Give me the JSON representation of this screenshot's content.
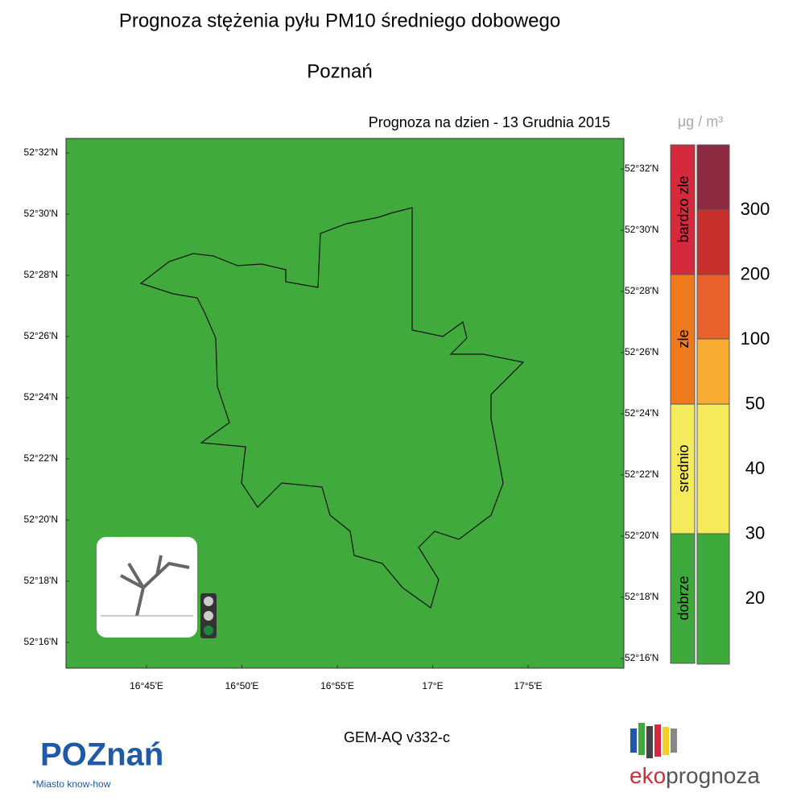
{
  "header": {
    "title": "Prognoza stężenia pyłu PM10 średniego dobowego",
    "city": "Poznań"
  },
  "map": {
    "date_label": "Prognoza na dzien -  13 Grudnia 2015",
    "lat_ticks_left": [
      "52°32'N",
      "52°30'N",
      "52°28'N",
      "52°26'N",
      "52°24'N",
      "52°22'N",
      "52°20'N",
      "52°18'N",
      "52°16'N"
    ],
    "lat_ticks_right": [
      "52°32'N",
      "52°30'N",
      "52°28'N",
      "52°26'N",
      "52°24'N",
      "52°22'N",
      "52°20'N",
      "52°18'N",
      "52°16'N"
    ],
    "lon_ticks": [
      "16°45'E",
      "16°50'E",
      "16°55'E",
      "17°E",
      "17°5'E"
    ]
  },
  "legend": {
    "unit": "μg / m³",
    "categories": [
      "bardzo zle",
      "zle",
      "srednio",
      "dobrze"
    ],
    "thresholds": [
      300,
      200,
      100,
      50,
      40,
      30,
      20
    ]
  },
  "footer": {
    "model": "GEM-AQ v332-c",
    "logo_left": "POZnań",
    "logo_left_tagline": "*Miasto know-how",
    "logo_right_a": "eko",
    "logo_right_b": "prognoza"
  }
}
